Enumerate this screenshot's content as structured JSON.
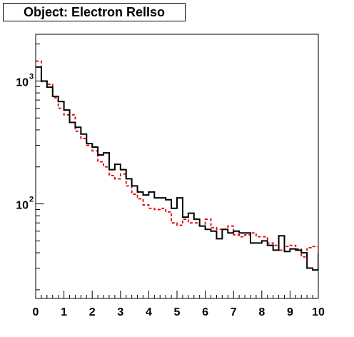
{
  "chart_data": {
    "type": "line",
    "title": "Object: Electron RelIso",
    "xlim": [
      0,
      10
    ],
    "ylim": [
      17,
      2400
    ],
    "yscale": "log",
    "x_ticks": [
      0,
      1,
      2,
      3,
      4,
      5,
      6,
      7,
      8,
      9,
      10
    ],
    "y_ticks": [
      {
        "value": 100,
        "base": "10",
        "exp": "2"
      },
      {
        "value": 1000,
        "base": "10",
        "exp": "3"
      }
    ],
    "grid": false,
    "bin_width": 0.2,
    "series": [
      {
        "color": "#000000",
        "style": "solid",
        "values": [
          1300,
          1000,
          890,
          750,
          680,
          580,
          460,
          420,
          370,
          310,
          290,
          250,
          260,
          190,
          210,
          190,
          160,
          140,
          125,
          118,
          125,
          112,
          112,
          108,
          92,
          112,
          78,
          84,
          75,
          66,
          62,
          60,
          52,
          62,
          58,
          60,
          58,
          58,
          48,
          48,
          50,
          46,
          42,
          55,
          41,
          43,
          42,
          40,
          30,
          29,
          39,
          40
        ]
      },
      {
        "color": "#dd0000",
        "style": "dashed",
        "values": [
          1450,
          990,
          940,
          730,
          600,
          530,
          530,
          390,
          340,
          300,
          270,
          220,
          200,
          170,
          160,
          175,
          140,
          120,
          110,
          98,
          92,
          90,
          92,
          86,
          70,
          67,
          75,
          70,
          70,
          66,
          75,
          64,
          62,
          62,
          66,
          56,
          54,
          56,
          58,
          54,
          54,
          48,
          46,
          42,
          45,
          46,
          43,
          37,
          44,
          45,
          36,
          36
        ]
      }
    ]
  }
}
